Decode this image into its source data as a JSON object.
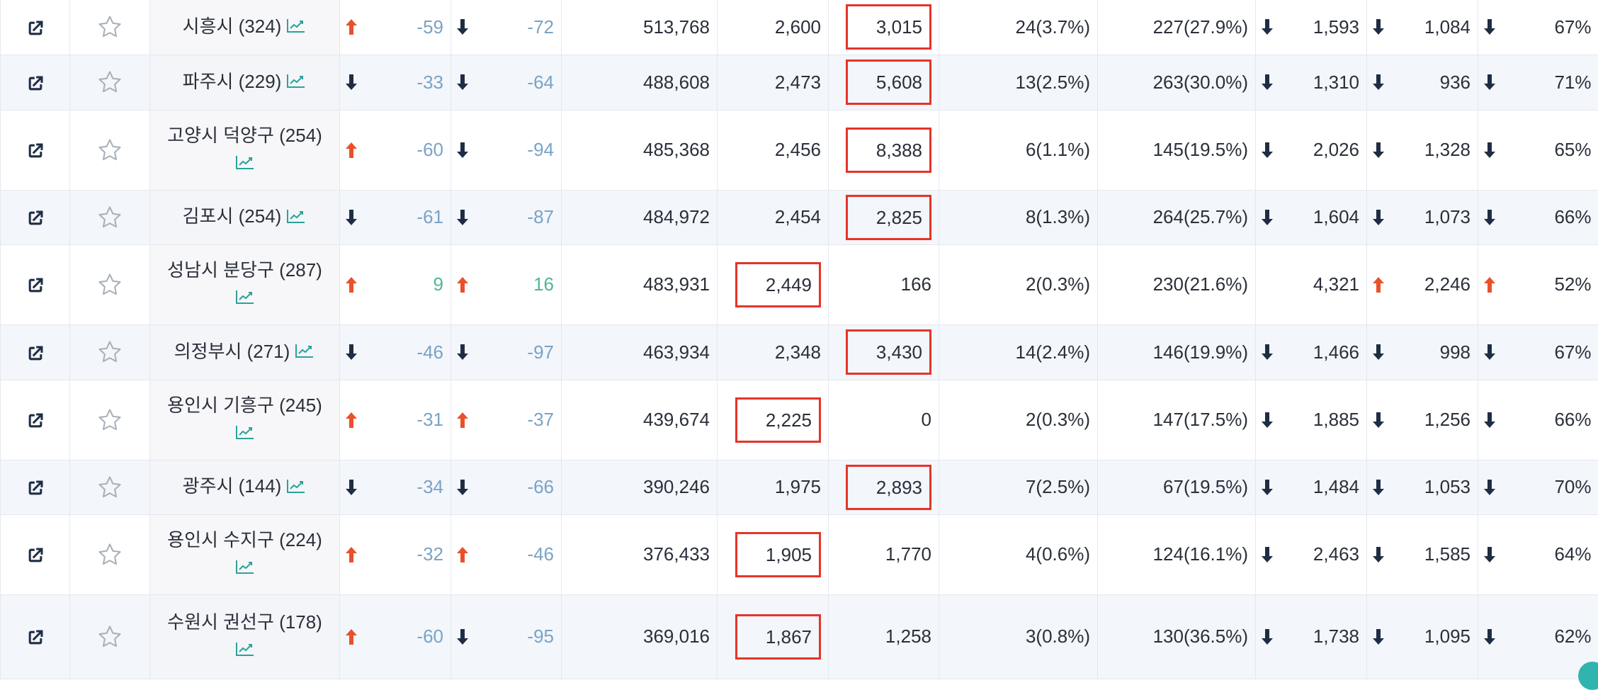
{
  "colors": {
    "up_arrow": "#e8512c",
    "down_arrow": "#1f2d44",
    "negative_text": "#7aa3c5",
    "positive_text": "#4fb88f",
    "highlight_border": "#e5342a",
    "trend_icon": "#2aa39a"
  },
  "icons": {
    "link": "external-link-icon",
    "star": "star-outline-icon",
    "trend": "trend-chart-icon",
    "up": "arrow-up-icon",
    "down": "arrow-down-icon"
  },
  "rows": [
    {
      "name": "시흥시 (324)",
      "two_line": false,
      "a1": "up",
      "d1": "-59",
      "a2": "down",
      "d2": "-72",
      "pop": "513,768",
      "v1": "2,600",
      "v2": "3,015",
      "hl": "v2",
      "r1": "24(3.7%)",
      "r2": "227(27.9%)",
      "b1a": "down",
      "b1": "1,593",
      "b2a": "down",
      "b2": "1,084",
      "b3a": "down",
      "pct": "67%"
    },
    {
      "name": "파주시 (229)",
      "two_line": false,
      "a1": "down",
      "d1": "-33",
      "a2": "down",
      "d2": "-64",
      "pop": "488,608",
      "v1": "2,473",
      "v2": "5,608",
      "hl": "v2",
      "r1": "13(2.5%)",
      "r2": "263(30.0%)",
      "b1a": "down",
      "b1": "1,310",
      "b2a": "down",
      "b2": "936",
      "b3a": "down",
      "pct": "71%"
    },
    {
      "name": "고양시 덕양구 (254)",
      "two_line": true,
      "a1": "up",
      "d1": "-60",
      "a2": "down",
      "d2": "-94",
      "pop": "485,368",
      "v1": "2,456",
      "v2": "8,388",
      "hl": "v2",
      "r1": "6(1.1%)",
      "r2": "145(19.5%)",
      "b1a": "down",
      "b1": "2,026",
      "b2a": "down",
      "b2": "1,328",
      "b3a": "down",
      "pct": "65%"
    },
    {
      "name": "김포시 (254)",
      "two_line": false,
      "a1": "down",
      "d1": "-61",
      "a2": "down",
      "d2": "-87",
      "pop": "484,972",
      "v1": "2,454",
      "v2": "2,825",
      "hl": "v2",
      "r1": "8(1.3%)",
      "r2": "264(25.7%)",
      "b1a": "down",
      "b1": "1,604",
      "b2a": "down",
      "b2": "1,073",
      "b3a": "down",
      "pct": "66%"
    },
    {
      "name": "성남시 분당구 (287)",
      "two_line": true,
      "a1": "up",
      "d1": "9",
      "a2": "up",
      "d2": "16",
      "pop": "483,931",
      "v1": "2,449",
      "v2": "166",
      "hl": "v1",
      "r1": "2(0.3%)",
      "r2": "230(21.6%)",
      "b1a": "",
      "b1": "4,321",
      "b2a": "up",
      "b2": "2,246",
      "b3a": "up",
      "pct": "52%"
    },
    {
      "name": "의정부시 (271)",
      "two_line": false,
      "a1": "down",
      "d1": "-46",
      "a2": "down",
      "d2": "-97",
      "pop": "463,934",
      "v1": "2,348",
      "v2": "3,430",
      "hl": "v2",
      "r1": "14(2.4%)",
      "r2": "146(19.9%)",
      "b1a": "down",
      "b1": "1,466",
      "b2a": "down",
      "b2": "998",
      "b3a": "down",
      "pct": "67%"
    },
    {
      "name": "용인시 기흥구 (245)",
      "two_line": true,
      "a1": "up",
      "d1": "-31",
      "a2": "up",
      "d2": "-37",
      "pop": "439,674",
      "v1": "2,225",
      "v2": "0",
      "hl": "v1",
      "r1": "2(0.3%)",
      "r2": "147(17.5%)",
      "b1a": "down",
      "b1": "1,885",
      "b2a": "down",
      "b2": "1,256",
      "b3a": "down",
      "pct": "66%"
    },
    {
      "name": "광주시 (144)",
      "two_line": false,
      "a1": "down",
      "d1": "-34",
      "a2": "down",
      "d2": "-66",
      "pop": "390,246",
      "v1": "1,975",
      "v2": "2,893",
      "hl": "v2",
      "r1": "7(2.5%)",
      "r2": "67(19.5%)",
      "b1a": "down",
      "b1": "1,484",
      "b2a": "down",
      "b2": "1,053",
      "b3a": "down",
      "pct": "70%"
    },
    {
      "name": "용인시 수지구 (224)",
      "two_line": true,
      "a1": "up",
      "d1": "-32",
      "a2": "up",
      "d2": "-46",
      "pop": "376,433",
      "v1": "1,905",
      "v2": "1,770",
      "hl": "v1",
      "r1": "4(0.6%)",
      "r2": "124(16.1%)",
      "b1a": "down",
      "b1": "2,463",
      "b2a": "down",
      "b2": "1,585",
      "b3a": "down",
      "pct": "64%"
    },
    {
      "name": "수원시 권선구 (178)",
      "two_line": true,
      "a1": "up",
      "d1": "-60",
      "a2": "down",
      "d2": "-95",
      "pop": "369,016",
      "v1": "1,867",
      "v2": "1,258",
      "hl": "v1",
      "r1": "3(0.8%)",
      "r2": "130(36.5%)",
      "b1a": "down",
      "b1": "1,738",
      "b2a": "down",
      "b2": "1,095",
      "b3a": "down",
      "pct": "62%"
    }
  ]
}
